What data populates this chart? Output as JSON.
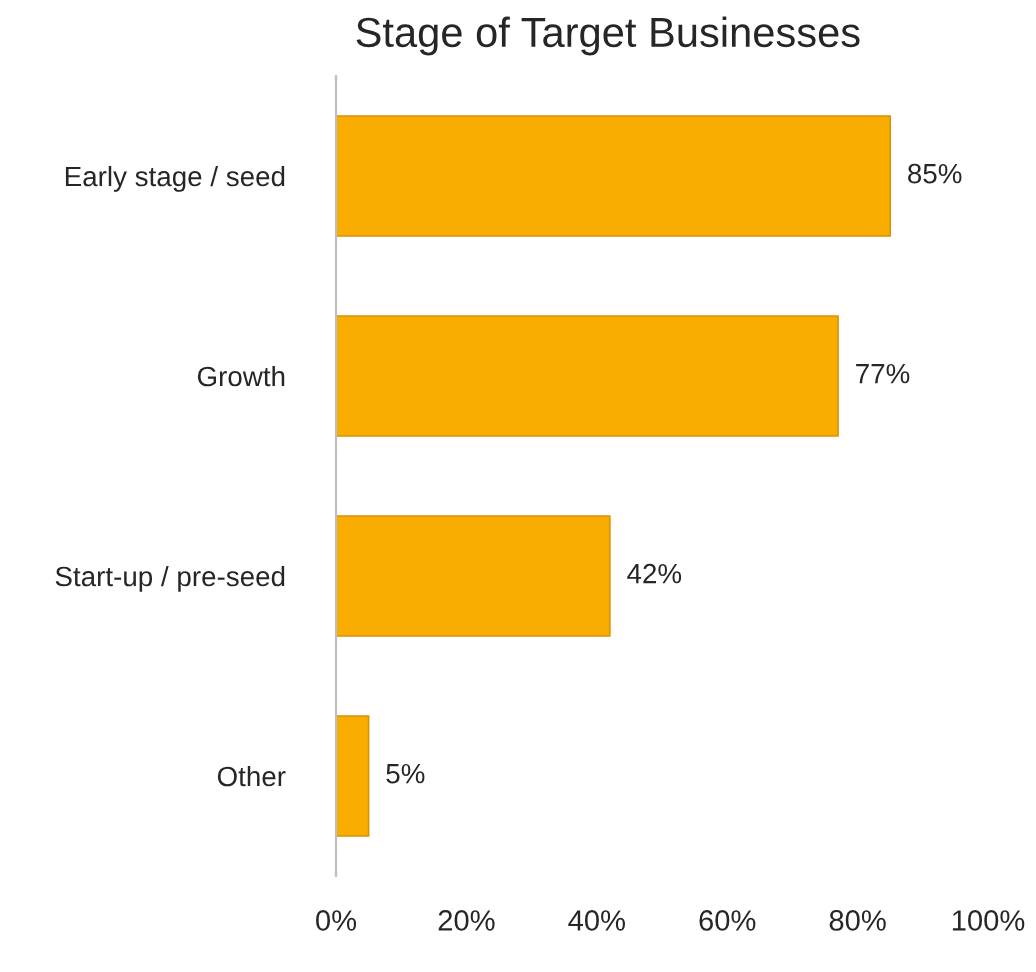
{
  "chart_data": {
    "type": "bar",
    "orientation": "horizontal",
    "title": "Stage of Target Businesses",
    "categories": [
      "Early stage / seed",
      "Growth",
      "Start-up / pre-seed",
      "Other"
    ],
    "values": [
      85,
      77,
      42,
      5
    ],
    "color": "#f9ad00",
    "value_labels": [
      "85%",
      "77%",
      "42%",
      "5%"
    ],
    "xlim": [
      0,
      100
    ],
    "xticks": [
      {
        "value": 0,
        "label": "0%"
      },
      {
        "value": 20,
        "label": "20%"
      },
      {
        "value": 40,
        "label": "40%"
      },
      {
        "value": 60,
        "label": "60%"
      },
      {
        "value": 80,
        "label": "80%"
      },
      {
        "value": 100,
        "label": "100%"
      }
    ],
    "grid": false,
    "legend": false
  }
}
